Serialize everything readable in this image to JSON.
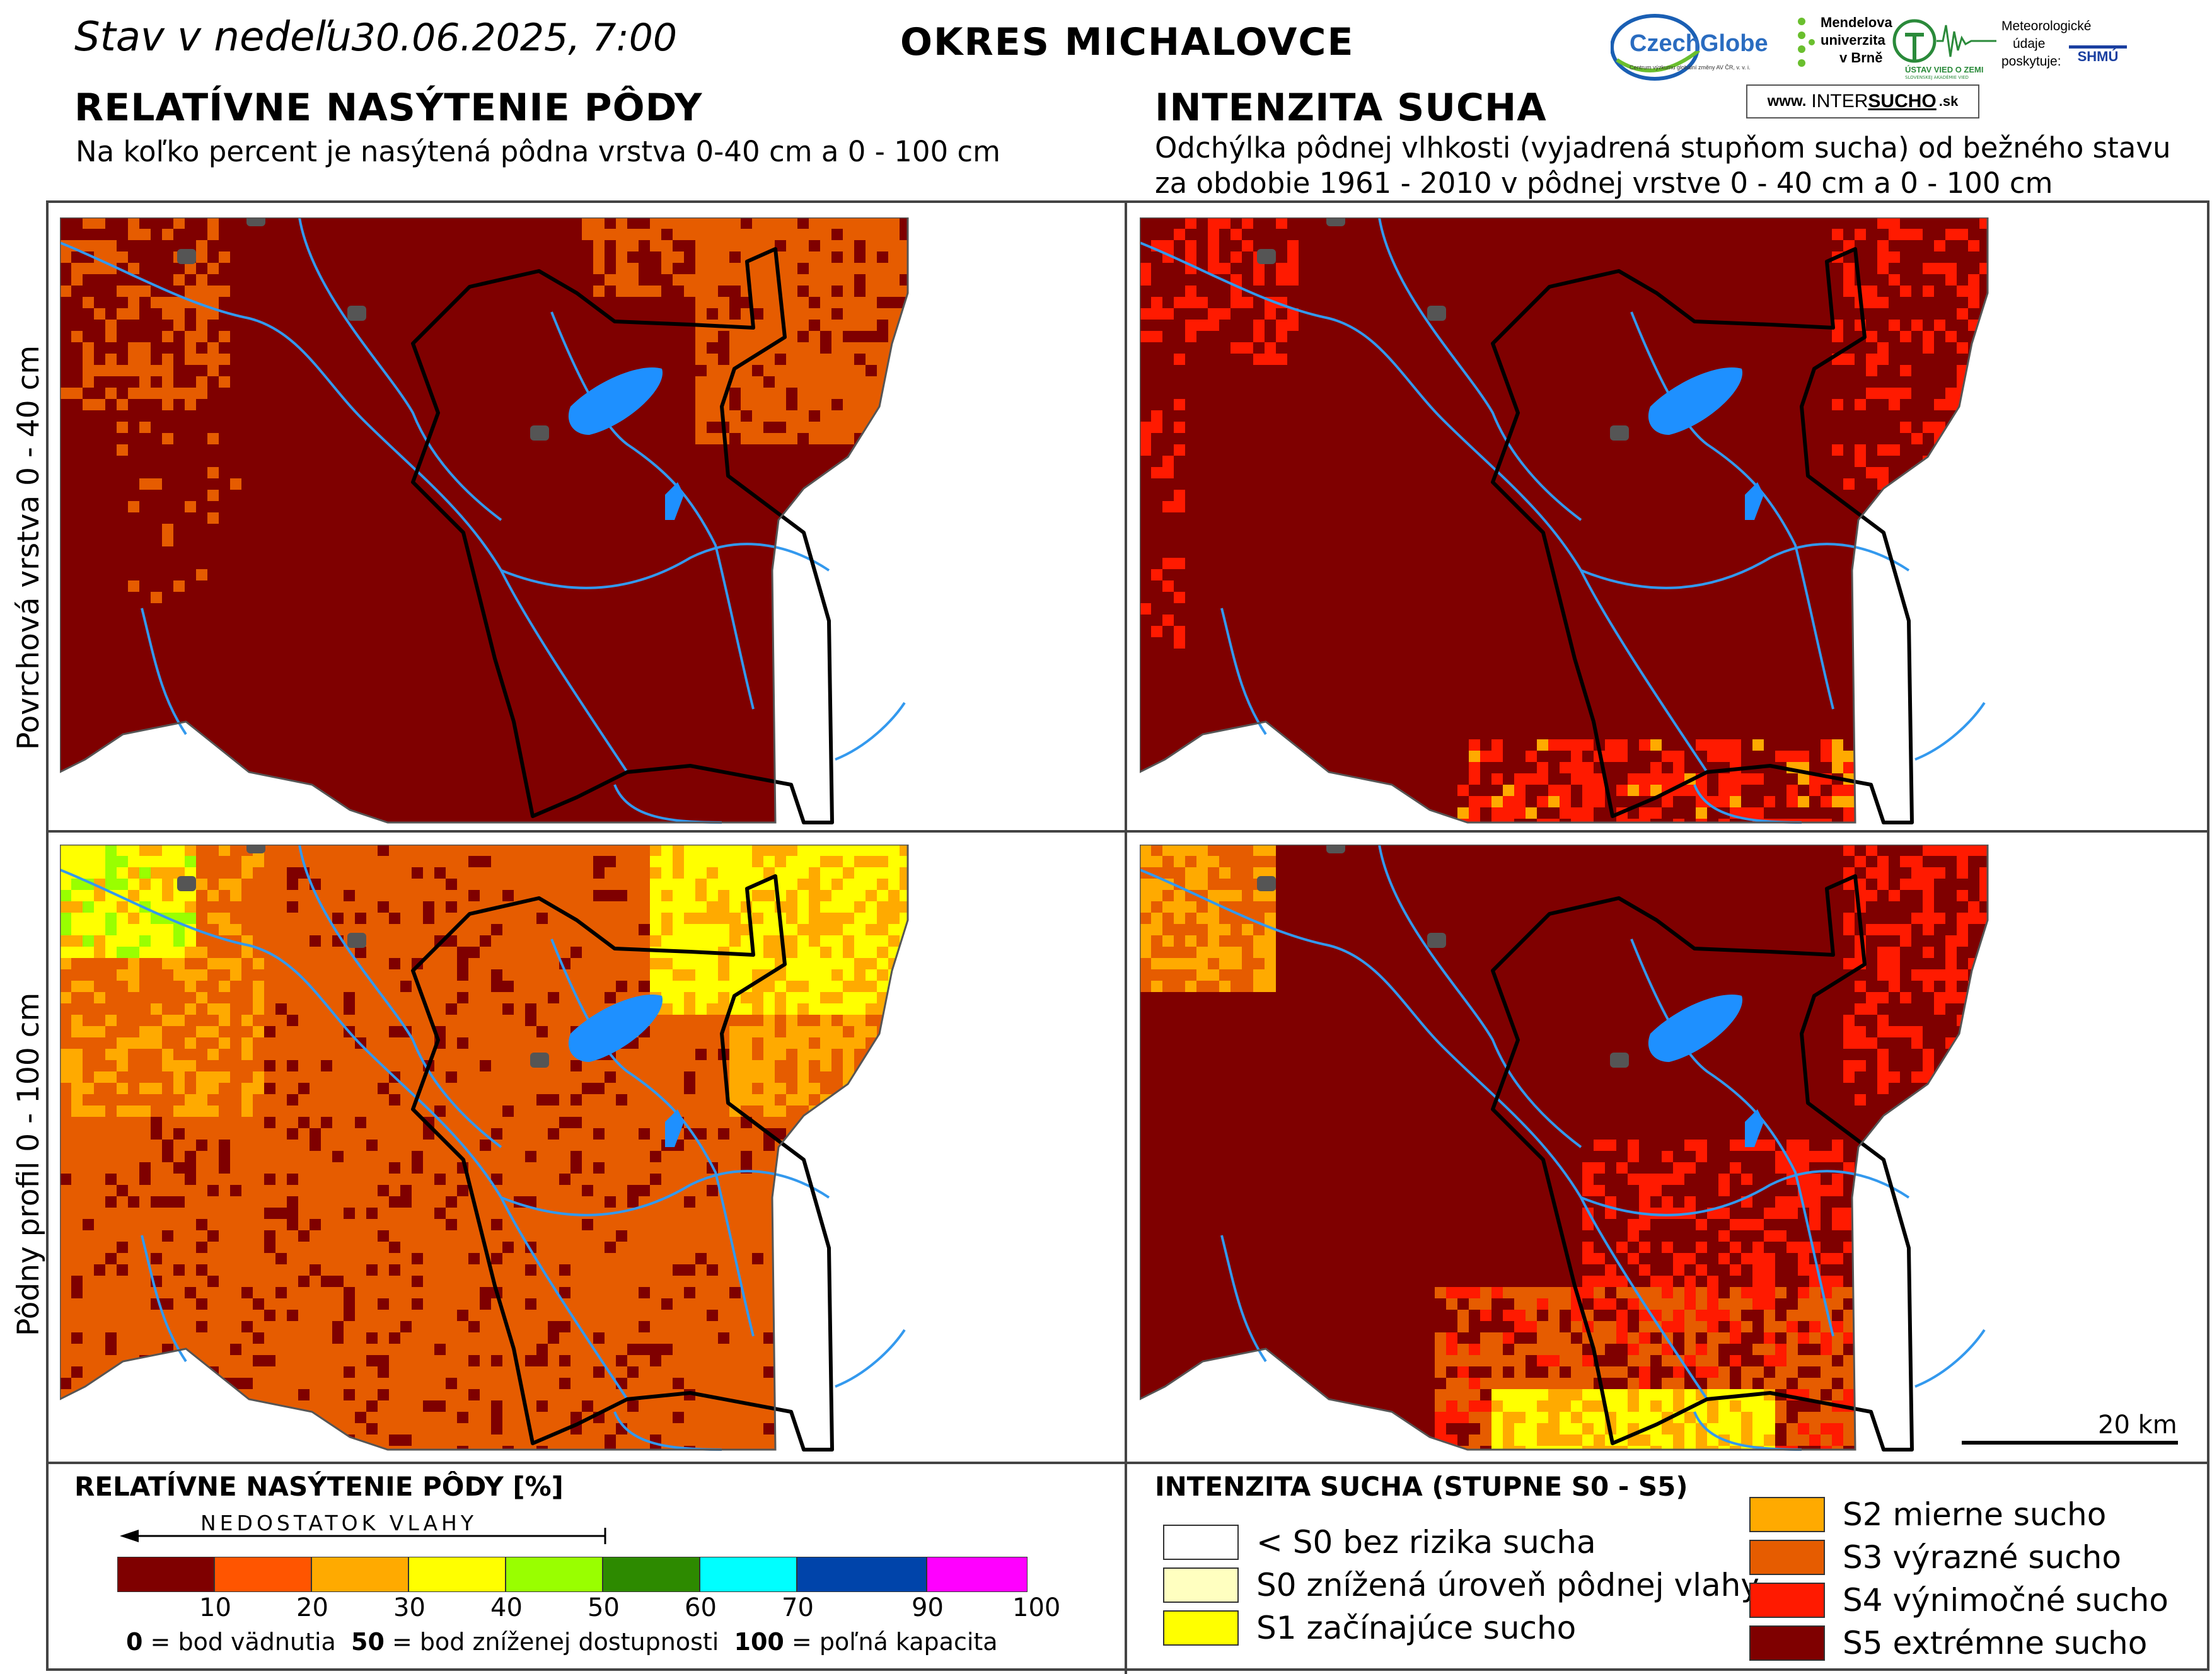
{
  "header": {
    "date_prefix": "Stav v nedeľu",
    "date_value": "30.06.2025, 7:00",
    "district": "OKRES  MICHALOVCE"
  },
  "logos": {
    "czechglobe": "CzechGlobe",
    "czechglobe_sub": "Centrum výzkumu globální změny AV ČR, v. v. i.",
    "mendelu_line1": "Mendelova",
    "mendelu_line2": "univerzita",
    "mendelu_line3": "v Brně",
    "uvz": "ÚSTAV VIED O ZEMI",
    "uvz_sub": "SLOVENSKEJ AKADÉMIE VIED",
    "met_line1": "Meteorologické",
    "met_line2": "údaje",
    "met_line3": "poskytuje:",
    "shmu": "SHMÚ",
    "intersucho_prefix": "www.",
    "intersucho_a": "INTER",
    "intersucho_b": "SUCHO",
    "intersucho_suffix": ".sk"
  },
  "left_section": {
    "title": "RELATÍVNE NASÝTENIE PÔDY",
    "subtitle": "Na koľko percent je nasýtená pôdna vrstva 0-40 cm a 0 - 100 cm"
  },
  "right_section": {
    "title": "INTENZITA SUCHA",
    "subtitle_line1": "Odchýlka pôdnej vlhkosti (vyjadrená stupňom sucha) od bežného stavu",
    "subtitle_line2": "za obdobie 1961 - 2010 v pôdnej vrstve 0 - 40 cm a 0 - 100 cm"
  },
  "row_labels": {
    "top": "Povrchová vrstva 0 - 40 cm",
    "bottom": "Pôdny profil 0 - 100 cm"
  },
  "scale_bar": {
    "label": "20 km"
  },
  "saturation_legend": {
    "title": "RELATÍVNE NASÝTENIE PÔDY [%]",
    "arrow_label": "NEDOSTATOK VLAHY",
    "colors": [
      "#7f0000",
      "#ff5500",
      "#ffaa00",
      "#ffff00",
      "#99ff00",
      "#2d8a00",
      "#00ffff",
      "#0044aa",
      "#ff00ff"
    ],
    "ticks": [
      "10",
      "20",
      "30",
      "40",
      "50",
      "60",
      "70",
      "90",
      "100"
    ],
    "note_0_key": "0",
    "note_0_text": " = bod vädnutia",
    "note_50_key": "50",
    "note_50_text": " = bod zníženej dostupnosti",
    "note_100_key": "100",
    "note_100_text": " = poľná kapacita"
  },
  "drought_legend": {
    "title": "INTENZITA SUCHA (STUPNE S0 - S5)",
    "items": [
      {
        "label": "< S0 bez rizika sucha",
        "color": "#ffffff"
      },
      {
        "label": "S0 znížená úroveň pôdnej vlahy",
        "color": "#ffffc0"
      },
      {
        "label": "S1 začínajúce sucho",
        "color": "#ffff00"
      },
      {
        "label": "S2 mierne sucho",
        "color": "#ffaa00"
      },
      {
        "label": "S3 výrazné sucho",
        "color": "#e65c00"
      },
      {
        "label": "S4 výnimočné sucho",
        "color": "#ff1a00"
      },
      {
        "label": "S5 extrémne sucho",
        "color": "#7f0000"
      }
    ]
  },
  "map_colors": {
    "dark_red": "#7f0000",
    "red": "#ff1a00",
    "orange": "#e65c00",
    "light_orange": "#ffaa00",
    "yellow": "#ffff00",
    "green_yellow": "#99ff00",
    "water": "#1e90ff",
    "river": "#3399ee",
    "city": "#555555",
    "border": "#000000"
  }
}
